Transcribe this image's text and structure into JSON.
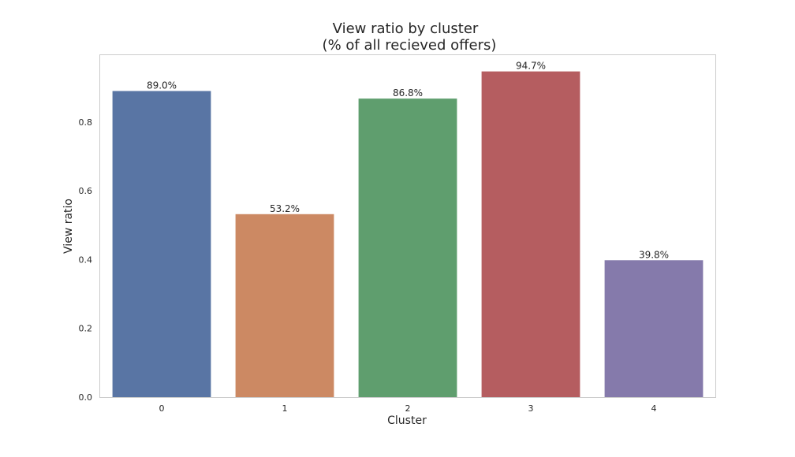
{
  "chart_data": {
    "type": "bar",
    "title_line1": "View ratio by cluster",
    "title_line2": "(% of all recieved offers)",
    "xlabel": "Cluster",
    "ylabel": "View ratio",
    "categories": [
      "0",
      "1",
      "2",
      "3",
      "4"
    ],
    "values": [
      0.89,
      0.532,
      0.868,
      0.947,
      0.398
    ],
    "value_labels": [
      "89.0%",
      "53.2%",
      "86.8%",
      "94.7%",
      "39.8%"
    ],
    "colors": [
      "#5975a4",
      "#cc8963",
      "#5f9e6e",
      "#b55d60",
      "#857aab"
    ],
    "ylim": [
      0,
      0.9943
    ],
    "yticks": [
      0.0,
      0.2,
      0.4,
      0.6,
      0.8
    ],
    "ytick_labels": [
      "0.0",
      "0.2",
      "0.4",
      "0.6",
      "0.8"
    ],
    "grid": false,
    "legend": "none"
  }
}
